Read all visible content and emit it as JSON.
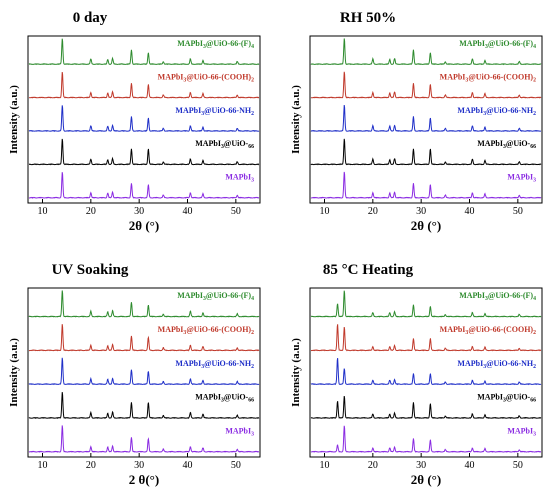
{
  "chart_data": [
    {
      "type": "line",
      "title": "0 day",
      "xlabel": "2θ (°)",
      "ylabel": "Intensity (a.u.)",
      "xlim": [
        7,
        55
      ],
      "xticks": [
        "10",
        "20",
        "30",
        "40",
        "50"
      ],
      "yticks": [],
      "series": [
        {
          "name": "MAPbI3@UiO-66-(F)4",
          "color": "#2e8b2e",
          "peaks": [
            [
              14.1,
              1.0
            ],
            [
              20.0,
              0.2
            ],
            [
              23.5,
              0.18
            ],
            [
              24.5,
              0.22
            ],
            [
              28.4,
              0.55
            ],
            [
              31.9,
              0.45
            ],
            [
              35.0,
              0.1
            ],
            [
              40.6,
              0.2
            ],
            [
              43.2,
              0.15
            ],
            [
              50.3,
              0.1
            ]
          ]
        },
        {
          "name": "MAPbI3@UiO-66-(COOH)2",
          "color": "#c0392b",
          "peaks": [
            [
              14.1,
              1.0
            ],
            [
              20.0,
              0.2
            ],
            [
              23.5,
              0.18
            ],
            [
              24.5,
              0.22
            ],
            [
              28.4,
              0.55
            ],
            [
              31.9,
              0.5
            ],
            [
              35.0,
              0.1
            ],
            [
              40.6,
              0.2
            ],
            [
              43.2,
              0.15
            ],
            [
              50.3,
              0.1
            ]
          ]
        },
        {
          "name": "MAPbI3@UiO-66-NH2",
          "color": "#1f2fc8",
          "peaks": [
            [
              14.1,
              1.0
            ],
            [
              20.0,
              0.2
            ],
            [
              23.5,
              0.18
            ],
            [
              24.5,
              0.22
            ],
            [
              28.4,
              0.55
            ],
            [
              31.9,
              0.5
            ],
            [
              35.0,
              0.1
            ],
            [
              40.6,
              0.2
            ],
            [
              43.2,
              0.15
            ],
            [
              50.3,
              0.1
            ]
          ]
        },
        {
          "name": "MAPbI3@UiO-66",
          "color": "#000000",
          "peaks": [
            [
              14.1,
              1.0
            ],
            [
              20.0,
              0.2
            ],
            [
              23.5,
              0.18
            ],
            [
              24.5,
              0.22
            ],
            [
              28.4,
              0.6
            ],
            [
              31.9,
              0.6
            ],
            [
              35.0,
              0.1
            ],
            [
              40.6,
              0.2
            ],
            [
              43.2,
              0.15
            ],
            [
              50.3,
              0.1
            ]
          ]
        },
        {
          "name": "MAPbI3",
          "color": "#8a2be2",
          "peaks": [
            [
              14.1,
              1.0
            ],
            [
              20.0,
              0.2
            ],
            [
              23.5,
              0.18
            ],
            [
              24.5,
              0.22
            ],
            [
              28.4,
              0.55
            ],
            [
              31.9,
              0.5
            ],
            [
              35.0,
              0.1
            ],
            [
              40.6,
              0.2
            ],
            [
              43.2,
              0.15
            ],
            [
              50.3,
              0.1
            ]
          ]
        }
      ]
    },
    {
      "type": "line",
      "title": "RH 50%",
      "xlabel": "2θ (°)",
      "ylabel": "Intensity (a.u.)",
      "xlim": [
        7,
        55
      ],
      "xticks": [
        "10",
        "20",
        "30",
        "40",
        "50"
      ],
      "yticks": [],
      "series": [
        {
          "name": "MAPbI3@UiO-66-(F)4",
          "color": "#2e8b2e",
          "peaks": [
            [
              14.1,
              1.0
            ],
            [
              20.0,
              0.2
            ],
            [
              23.5,
              0.18
            ],
            [
              24.5,
              0.22
            ],
            [
              28.4,
              0.55
            ],
            [
              31.9,
              0.45
            ],
            [
              35.0,
              0.1
            ],
            [
              40.6,
              0.2
            ],
            [
              43.2,
              0.15
            ],
            [
              50.3,
              0.1
            ]
          ]
        },
        {
          "name": "MAPbI3@UiO-66-(COOH)2",
          "color": "#c0392b",
          "peaks": [
            [
              14.1,
              1.0
            ],
            [
              20.0,
              0.2
            ],
            [
              23.5,
              0.18
            ],
            [
              24.5,
              0.22
            ],
            [
              28.4,
              0.55
            ],
            [
              31.9,
              0.5
            ],
            [
              35.0,
              0.1
            ],
            [
              40.6,
              0.2
            ],
            [
              43.2,
              0.15
            ],
            [
              50.3,
              0.1
            ]
          ]
        },
        {
          "name": "MAPbI3@UiO-66-NH2",
          "color": "#1f2fc8",
          "peaks": [
            [
              14.1,
              1.0
            ],
            [
              20.0,
              0.2
            ],
            [
              23.5,
              0.18
            ],
            [
              24.5,
              0.22
            ],
            [
              28.4,
              0.55
            ],
            [
              31.9,
              0.5
            ],
            [
              35.0,
              0.1
            ],
            [
              40.6,
              0.2
            ],
            [
              43.2,
              0.15
            ],
            [
              50.3,
              0.1
            ]
          ]
        },
        {
          "name": "MAPbI3@UiO-66",
          "color": "#000000",
          "peaks": [
            [
              14.1,
              1.0
            ],
            [
              20.0,
              0.2
            ],
            [
              23.5,
              0.18
            ],
            [
              24.5,
              0.22
            ],
            [
              28.4,
              0.6
            ],
            [
              31.9,
              0.6
            ],
            [
              35.0,
              0.1
            ],
            [
              40.6,
              0.2
            ],
            [
              43.2,
              0.15
            ],
            [
              50.3,
              0.1
            ]
          ]
        },
        {
          "name": "MAPbI3",
          "color": "#8a2be2",
          "peaks": [
            [
              14.1,
              1.0
            ],
            [
              20.0,
              0.2
            ],
            [
              23.5,
              0.18
            ],
            [
              24.5,
              0.22
            ],
            [
              28.4,
              0.55
            ],
            [
              31.9,
              0.5
            ],
            [
              35.0,
              0.1
            ],
            [
              40.6,
              0.2
            ],
            [
              43.2,
              0.15
            ],
            [
              50.3,
              0.1
            ]
          ]
        }
      ]
    },
    {
      "type": "line",
      "title": "UV Soaking",
      "xlabel": "2 θ(°)",
      "ylabel": "Intensity (a.u.)",
      "xlim": [
        7,
        55
      ],
      "xticks": [
        "10",
        "20",
        "30",
        "40",
        "50"
      ],
      "yticks": [],
      "series": [
        {
          "name": "MAPbI3@UiO-66-(F)4",
          "color": "#2e8b2e",
          "peaks": [
            [
              14.1,
              1.0
            ],
            [
              20.0,
              0.2
            ],
            [
              23.5,
              0.18
            ],
            [
              24.5,
              0.22
            ],
            [
              28.4,
              0.55
            ],
            [
              31.9,
              0.45
            ],
            [
              35.0,
              0.1
            ],
            [
              40.6,
              0.2
            ],
            [
              43.2,
              0.15
            ],
            [
              50.3,
              0.1
            ]
          ]
        },
        {
          "name": "MAPbI3@UiO-66-(COOH)2",
          "color": "#c0392b",
          "peaks": [
            [
              14.1,
              1.0
            ],
            [
              20.0,
              0.2
            ],
            [
              23.5,
              0.18
            ],
            [
              24.5,
              0.22
            ],
            [
              28.4,
              0.55
            ],
            [
              31.9,
              0.5
            ],
            [
              35.0,
              0.1
            ],
            [
              40.6,
              0.2
            ],
            [
              43.2,
              0.15
            ],
            [
              50.3,
              0.1
            ]
          ]
        },
        {
          "name": "MAPbI3@UiO-66-NH2",
          "color": "#1f2fc8",
          "peaks": [
            [
              14.1,
              1.0
            ],
            [
              20.0,
              0.2
            ],
            [
              23.5,
              0.18
            ],
            [
              24.5,
              0.22
            ],
            [
              28.4,
              0.55
            ],
            [
              31.9,
              0.5
            ],
            [
              35.0,
              0.1
            ],
            [
              40.6,
              0.2
            ],
            [
              43.2,
              0.15
            ],
            [
              50.3,
              0.1
            ]
          ]
        },
        {
          "name": "MAPbI3@UiO-66",
          "color": "#000000",
          "peaks": [
            [
              14.1,
              1.0
            ],
            [
              20.0,
              0.2
            ],
            [
              23.5,
              0.18
            ],
            [
              24.5,
              0.22
            ],
            [
              28.4,
              0.6
            ],
            [
              31.9,
              0.6
            ],
            [
              35.0,
              0.1
            ],
            [
              40.6,
              0.2
            ],
            [
              43.2,
              0.15
            ],
            [
              50.3,
              0.1
            ]
          ]
        },
        {
          "name": "MAPbI3",
          "color": "#8a2be2",
          "peaks": [
            [
              14.1,
              1.0
            ],
            [
              20.0,
              0.2
            ],
            [
              23.5,
              0.18
            ],
            [
              24.5,
              0.22
            ],
            [
              28.4,
              0.55
            ],
            [
              31.9,
              0.5
            ],
            [
              35.0,
              0.1
            ],
            [
              40.6,
              0.2
            ],
            [
              43.2,
              0.15
            ],
            [
              50.3,
              0.1
            ]
          ]
        }
      ]
    },
    {
      "type": "line",
      "title": "85 °C Heating",
      "xlabel": "2θ (°)",
      "ylabel": "Intensity (a.u.)",
      "xlim": [
        7,
        55
      ],
      "xticks": [
        "10",
        "20",
        "30",
        "40",
        "50"
      ],
      "yticks": [],
      "series": [
        {
          "name": "MAPbI3@UiO-66-(F)4",
          "color": "#2e8b2e",
          "peaks": [
            [
              12.7,
              0.5
            ],
            [
              14.1,
              1.0
            ],
            [
              20.0,
              0.15
            ],
            [
              23.5,
              0.15
            ],
            [
              24.5,
              0.18
            ],
            [
              28.4,
              0.45
            ],
            [
              31.9,
              0.4
            ],
            [
              35.0,
              0.08
            ],
            [
              40.6,
              0.15
            ],
            [
              43.2,
              0.12
            ],
            [
              50.3,
              0.08
            ]
          ]
        },
        {
          "name": "MAPbI3@UiO-66-(COOH)2",
          "color": "#c0392b",
          "peaks": [
            [
              12.7,
              1.0
            ],
            [
              14.1,
              0.9
            ],
            [
              20.0,
              0.15
            ],
            [
              23.5,
              0.15
            ],
            [
              24.5,
              0.18
            ],
            [
              28.4,
              0.45
            ],
            [
              31.9,
              0.45
            ],
            [
              35.0,
              0.08
            ],
            [
              40.6,
              0.15
            ],
            [
              43.2,
              0.12
            ],
            [
              50.3,
              0.08
            ]
          ]
        },
        {
          "name": "MAPbI3@UiO-66-NH2",
          "color": "#1f2fc8",
          "peaks": [
            [
              12.7,
              1.0
            ],
            [
              14.1,
              0.6
            ],
            [
              20.0,
              0.15
            ],
            [
              23.5,
              0.15
            ],
            [
              24.5,
              0.18
            ],
            [
              28.4,
              0.4
            ],
            [
              31.9,
              0.4
            ],
            [
              35.0,
              0.08
            ],
            [
              40.6,
              0.15
            ],
            [
              43.2,
              0.12
            ],
            [
              50.3,
              0.08
            ]
          ]
        },
        {
          "name": "MAPbI3@UiO-66",
          "color": "#000000",
          "peaks": [
            [
              12.7,
              0.65
            ],
            [
              14.1,
              0.85
            ],
            [
              20.0,
              0.15
            ],
            [
              23.5,
              0.15
            ],
            [
              24.5,
              0.18
            ],
            [
              28.4,
              0.6
            ],
            [
              31.9,
              0.55
            ],
            [
              35.0,
              0.08
            ],
            [
              40.6,
              0.15
            ],
            [
              43.2,
              0.12
            ],
            [
              50.3,
              0.08
            ]
          ]
        },
        {
          "name": "MAPbI3",
          "color": "#8a2be2",
          "peaks": [
            [
              12.7,
              0.25
            ],
            [
              14.1,
              1.0
            ],
            [
              20.0,
              0.15
            ],
            [
              23.5,
              0.15
            ],
            [
              24.5,
              0.18
            ],
            [
              28.4,
              0.5
            ],
            [
              31.9,
              0.45
            ],
            [
              35.0,
              0.08
            ],
            [
              40.6,
              0.15
            ],
            [
              43.2,
              0.12
            ],
            [
              50.3,
              0.08
            ]
          ]
        }
      ]
    }
  ]
}
